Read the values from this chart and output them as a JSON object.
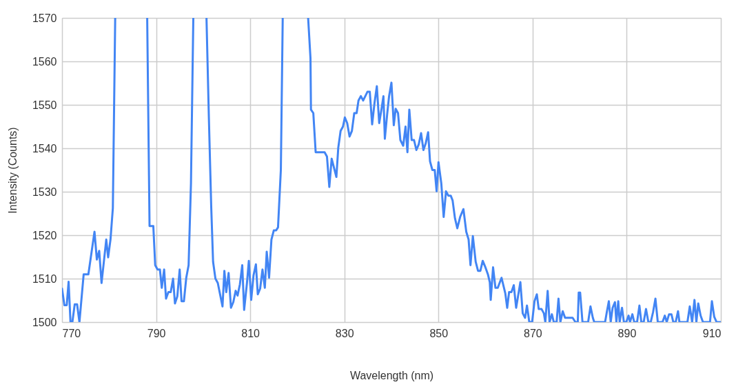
{
  "chart_data": {
    "type": "line",
    "xlabel": "Wavelength (nm)",
    "ylabel": "Intensity (Counts)",
    "xlim": [
      770,
      910
    ],
    "xticks": [
      770,
      790,
      810,
      830,
      850,
      870,
      890,
      910
    ],
    "ylim": [
      1500,
      1570
    ],
    "yticks": [
      1500,
      1510,
      1520,
      1530,
      1540,
      1550,
      1560,
      1570
    ],
    "grid": true,
    "marker": "none",
    "line_style": "solid",
    "series": [
      {
        "color": "#4285f4",
        "x": [
          770,
          770.5,
          771,
          771.4,
          771.8,
          772.2,
          772.7,
          773.2,
          773.7,
          774.6,
          775.6,
          776.9,
          777.4,
          777.9,
          778.4,
          779.4,
          779.8,
          780.3,
          780.8,
          781.3,
          785,
          788.1,
          788.6,
          789.4,
          789.8,
          790.3,
          790.8,
          791.2,
          791.7,
          792.1,
          792.6,
          793.1,
          793.6,
          794,
          794.5,
          795,
          795.4,
          795.9,
          796.4,
          796.9,
          797.4,
          797.9,
          799,
          800.7,
          801.2,
          801.7,
          802.1,
          802.6,
          803.1,
          804.1,
          804.5,
          804.9,
          805.4,
          805.9,
          806.4,
          806.9,
          807.3,
          807.8,
          808.3,
          808.7,
          809.3,
          809.7,
          810.2,
          810.7,
          811.2,
          811.6,
          812.1,
          812.6,
          813.1,
          813.5,
          814,
          814.5,
          815,
          815.5,
          815.9,
          816.5,
          816.9,
          819.5,
          822.3,
          822.8,
          822.9,
          823.4,
          823.9,
          825.8,
          826.3,
          826.8,
          827.3,
          828.3,
          828.7,
          829.2,
          829.7,
          830.1,
          830.6,
          831.1,
          831.6,
          832.1,
          832.6,
          833,
          833.5,
          834,
          834.9,
          835.4,
          835.9,
          836.4,
          836.9,
          837.4,
          837.9,
          838.3,
          838.6,
          839.1,
          839.5,
          840,
          840.5,
          840.9,
          841.4,
          841.9,
          842.5,
          843,
          843.4,
          843.8,
          844.3,
          844.8,
          845.3,
          845.8,
          846.3,
          846.8,
          847.3,
          847.8,
          848.2,
          848.7,
          849.2,
          849.6,
          850,
          850.6,
          851.1,
          851.6,
          852.1,
          852.6,
          853,
          853.5,
          854,
          854.6,
          855.3,
          855.9,
          856.4,
          856.8,
          857.3,
          857.9,
          858.4,
          858.9,
          859.4,
          859.9,
          860.5,
          860.9,
          861.1,
          861.6,
          862.1,
          862.6,
          863.4,
          864.2,
          864.6,
          865,
          865.5,
          866,
          866.5,
          866.9,
          867.4,
          867.9,
          868.4,
          868.8,
          869.3,
          869.9,
          870.4,
          870.9,
          871.3,
          871.9,
          872.4,
          872.7,
          873.2,
          873.6,
          874.1,
          874.5,
          875.1,
          875.5,
          875.9,
          876.4,
          876.9,
          878.5,
          879.1,
          879.6,
          879.8,
          880.1,
          880.6,
          881.8,
          882.3,
          882.8,
          883.1,
          885.4,
          885.8,
          886.2,
          886.6,
          887,
          887.5,
          887.8,
          888.2,
          888.5,
          889,
          889.4,
          889.9,
          890.4,
          890.7,
          891.2,
          891.6,
          892.2,
          892.7,
          893.1,
          893.6,
          894.1,
          894.6,
          895.1,
          895.6,
          896.1,
          896.6,
          897.6,
          898.1,
          898.5,
          899,
          899.5,
          899.9,
          900.4,
          900.9,
          901.2,
          902.9,
          903.4,
          903.9,
          904.4,
          904.8,
          905.2,
          905.7,
          906.2,
          907.7,
          908.1,
          908.6,
          909.1,
          910
        ],
        "values": [
          1507.7,
          1503.9,
          1503.9,
          1509.3,
          1500,
          1500,
          1504.1,
          1504.1,
          1500,
          1511,
          1511,
          1520.8,
          1514.4,
          1516.4,
          1509,
          1519,
          1514.9,
          1519,
          1526.2,
          1570,
          null,
          1570,
          1522.1,
          1522.1,
          1513.1,
          1512.1,
          1512.1,
          1507.9,
          1512.1,
          1505.4,
          1506.9,
          1506.9,
          1510,
          1504.3,
          1505.9,
          1512.1,
          1504.8,
          1504.8,
          1510.2,
          1513.1,
          1531.9,
          1570,
          null,
          1570,
          1547.3,
          1526.7,
          1513.9,
          1510,
          1509,
          1503.6,
          1511.8,
          1506.9,
          1511.3,
          1503.3,
          1504.6,
          1507.2,
          1506.1,
          1508.7,
          1513.1,
          1502.8,
          1509,
          1514.1,
          1505.1,
          1510.8,
          1513.3,
          1506.4,
          1507.7,
          1512.1,
          1507.9,
          1516.2,
          1510.2,
          1519,
          1521.1,
          1521.1,
          1521.8,
          1535,
          1570,
          null,
          1570,
          1560.7,
          1548.9,
          1548.1,
          1539.1,
          1539.1,
          1538.1,
          1531.1,
          1537.6,
          1533.4,
          1540.1,
          1544,
          1545,
          1547.1,
          1545.8,
          1542.7,
          1544,
          1548.1,
          1548.1,
          1551,
          1552,
          1551,
          1553,
          1553,
          1545.5,
          1550.4,
          1554.3,
          1545.8,
          1549.1,
          1552,
          1542.2,
          1547.9,
          1552,
          1555.1,
          1545.3,
          1549.1,
          1548.1,
          1541.9,
          1540.6,
          1545,
          1539.1,
          1548.9,
          1541.9,
          1541.9,
          1539.6,
          1540.9,
          1543.5,
          1539.6,
          1541.2,
          1543.7,
          1537,
          1535,
          1535,
          1530.1,
          1536.8,
          1531.9,
          1524.2,
          1530.1,
          1529.1,
          1529.1,
          1528,
          1523.9,
          1521.6,
          1524.2,
          1526,
          1520.8,
          1519,
          1513.1,
          1519.8,
          1513.9,
          1511.8,
          1511.8,
          1514.1,
          1512.8,
          1511,
          1509.2,
          1505.1,
          1512.6,
          1507.9,
          1507.9,
          1510.2,
          1506.6,
          1503.3,
          1506.9,
          1506.9,
          1508.5,
          1503.3,
          1505.9,
          1509.2,
          1502,
          1501,
          1503.8,
          1500,
          1500,
          1504.8,
          1506.4,
          1503,
          1503,
          1502,
          1500,
          1507.2,
          1500,
          1501.8,
          1500,
          1500,
          1505.4,
          1500,
          1502.5,
          1501,
          1501,
          1500,
          1500,
          1506.8,
          1506.8,
          1500,
          1500,
          1503.6,
          1501,
          1500,
          1500,
          1502.5,
          1504.8,
          1500,
          1503.3,
          1504.6,
          1500,
          1504.8,
          1500,
          1503.3,
          1500,
          1500,
          1501.5,
          1500,
          1501.8,
          1500,
          1500,
          1503.8,
          1500,
          1500,
          1503,
          1500,
          1500,
          1502.3,
          1505.4,
          1500,
          1500,
          1501.5,
          1500,
          1501.8,
          1501.8,
          1500,
          1500,
          1502.5,
          1500,
          1500,
          1503.6,
          1500,
          1505.1,
          1500,
          1504.3,
          1501.5,
          1500,
          1500,
          1504.8,
          1501.2,
          1500,
          1500
        ]
      }
    ]
  }
}
